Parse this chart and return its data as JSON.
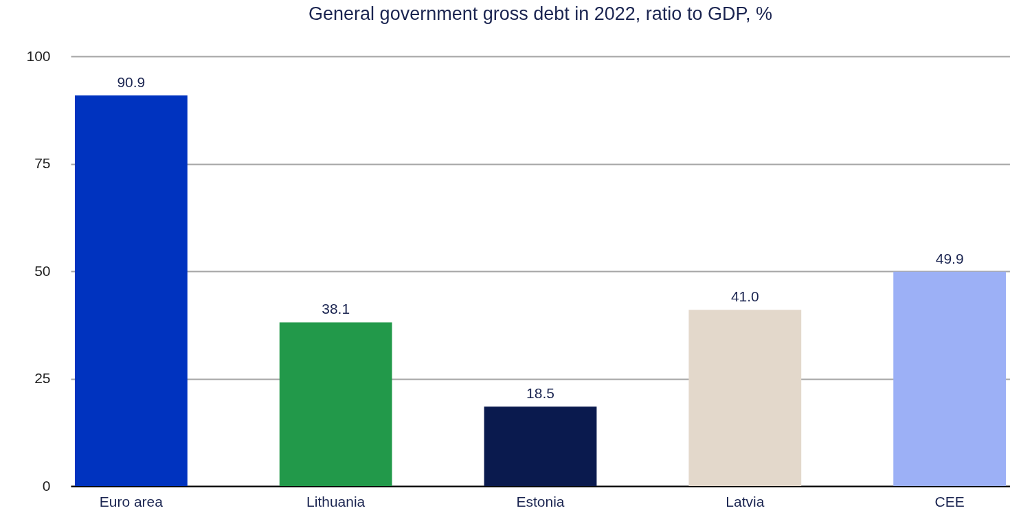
{
  "chart_data": {
    "type": "bar",
    "title": "General government gross debt in 2022, ratio to GDP, %",
    "categories": [
      "Euro area",
      "Lithuania",
      "Estonia",
      "Latvia",
      "CEE"
    ],
    "values": [
      90.9,
      38.1,
      18.5,
      41.0,
      49.9
    ],
    "colors": [
      "#0033bf",
      "#22994a",
      "#0a1a4e",
      "#e3d8cb",
      "#9cb0f6"
    ],
    "value_labels": [
      "90.9",
      "38.1",
      "18.5",
      "41.0",
      "49.9"
    ],
    "ylim": [
      0,
      100
    ],
    "yticks": [
      0,
      25,
      50,
      75,
      100
    ],
    "grid": "y"
  }
}
